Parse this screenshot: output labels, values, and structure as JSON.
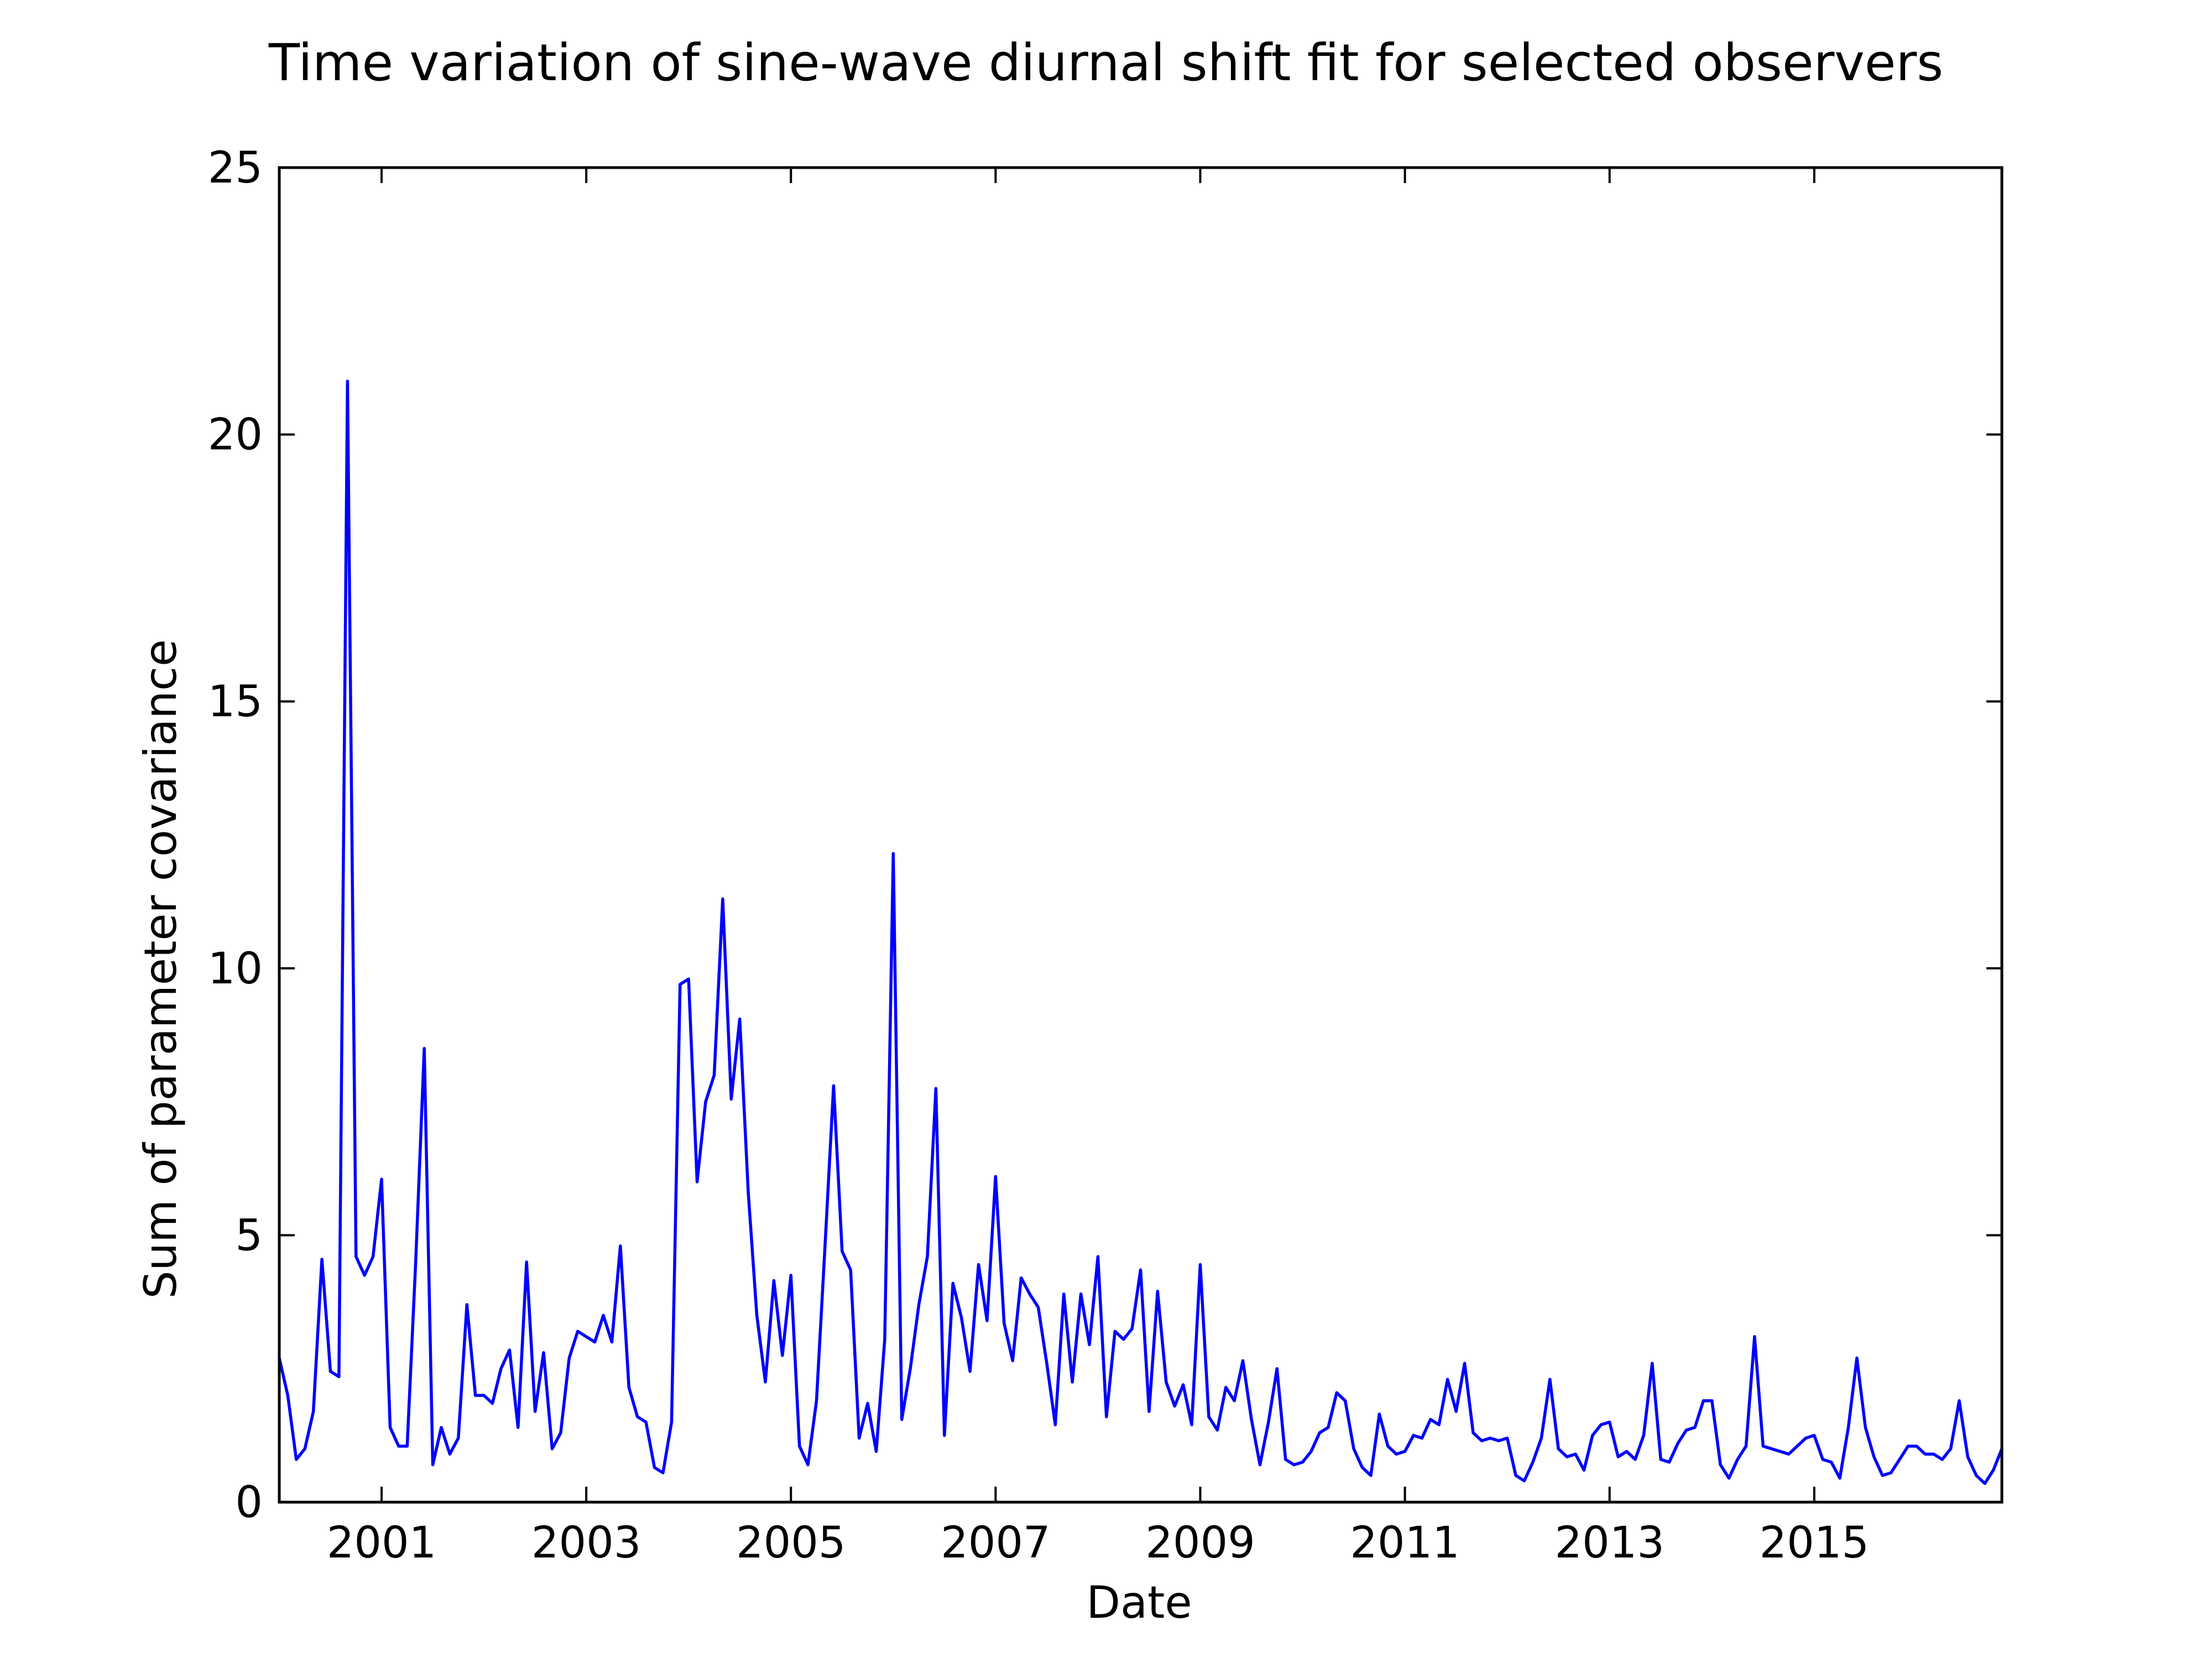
{
  "chart_data": {
    "type": "line",
    "title": "Time variation of sine-wave diurnal shift fit for selected observers",
    "xlabel": "Date",
    "ylabel": "Sum of parameter covariance",
    "xlim": [
      "2000-01",
      "2016-11"
    ],
    "ylim": [
      0,
      25
    ],
    "x_ticks": [
      "2001",
      "2003",
      "2005",
      "2007",
      "2009",
      "2011",
      "2013",
      "2015"
    ],
    "y_ticks": [
      "0",
      "5",
      "10",
      "15",
      "20",
      "25"
    ],
    "grid": false,
    "legend": "none",
    "series": [
      {
        "color": "#0000ff",
        "x": [
          "2000-01",
          "2000-02",
          "2000-03",
          "2000-04",
          "2000-05",
          "2000-06",
          "2000-07",
          "2000-08",
          "2000-09",
          "2000-10",
          "2000-11",
          "2000-12",
          "2001-01",
          "2001-02",
          "2001-03",
          "2001-04",
          "2001-05",
          "2001-06",
          "2001-07",
          "2001-08",
          "2001-09",
          "2001-10",
          "2001-11",
          "2001-12",
          "2002-01",
          "2002-02",
          "2002-03",
          "2002-04",
          "2002-05",
          "2002-06",
          "2002-07",
          "2002-08",
          "2002-09",
          "2002-10",
          "2002-11",
          "2002-12",
          "2003-01",
          "2003-02",
          "2003-03",
          "2003-04",
          "2003-05",
          "2003-06",
          "2003-07",
          "2003-08",
          "2003-09",
          "2003-10",
          "2003-11",
          "2003-12",
          "2004-01",
          "2004-02",
          "2004-03",
          "2004-04",
          "2004-05",
          "2004-06",
          "2004-07",
          "2004-08",
          "2004-09",
          "2004-10",
          "2004-11",
          "2004-12",
          "2005-01",
          "2005-02",
          "2005-03",
          "2005-04",
          "2005-05",
          "2005-06",
          "2005-07",
          "2005-08",
          "2005-09",
          "2005-10",
          "2005-11",
          "2005-12",
          "2006-01",
          "2006-02",
          "2006-03",
          "2006-04",
          "2006-05",
          "2006-06",
          "2006-07",
          "2006-08",
          "2006-09",
          "2006-10",
          "2006-11",
          "2006-12",
          "2007-01",
          "2007-02",
          "2007-03",
          "2007-04",
          "2007-05",
          "2007-06",
          "2007-07",
          "2007-08",
          "2007-09",
          "2007-10",
          "2007-11",
          "2007-12",
          "2008-01",
          "2008-02",
          "2008-03",
          "2008-04",
          "2008-05",
          "2008-06",
          "2008-07",
          "2008-08",
          "2008-09",
          "2008-10",
          "2008-11",
          "2008-12",
          "2009-01",
          "2009-02",
          "2009-03",
          "2009-04",
          "2009-05",
          "2009-06",
          "2009-07",
          "2009-08",
          "2009-09",
          "2009-10",
          "2009-11",
          "2009-12",
          "2010-01",
          "2010-02",
          "2010-03",
          "2010-04",
          "2010-05",
          "2010-06",
          "2010-07",
          "2010-08",
          "2010-09",
          "2010-10",
          "2010-11",
          "2010-12",
          "2011-01",
          "2011-02",
          "2011-03",
          "2011-04",
          "2011-05",
          "2011-06",
          "2011-07",
          "2011-08",
          "2011-09",
          "2011-10",
          "2011-11",
          "2011-12",
          "2012-01",
          "2012-02",
          "2012-03",
          "2012-04",
          "2012-05",
          "2012-06",
          "2012-07",
          "2012-08",
          "2012-09",
          "2012-10",
          "2012-11",
          "2012-12",
          "2013-01",
          "2013-02",
          "2013-03",
          "2013-04",
          "2013-05",
          "2013-06",
          "2013-07",
          "2013-08",
          "2013-09",
          "2013-10",
          "2013-11",
          "2013-12",
          "2014-01",
          "2014-02",
          "2014-03",
          "2014-04",
          "2014-05",
          "2014-06",
          "2014-07",
          "2014-08",
          "2014-09",
          "2014-10",
          "2014-11",
          "2014-12",
          "2015-01",
          "2015-02",
          "2015-03",
          "2015-04",
          "2015-05",
          "2015-06",
          "2015-07",
          "2015-08",
          "2015-09",
          "2015-10",
          "2015-11",
          "2015-12",
          "2016-01",
          "2016-02",
          "2016-03",
          "2016-04",
          "2016-05",
          "2016-06",
          "2016-07",
          "2016-08",
          "2016-09",
          "2016-10",
          "2016-11"
        ],
        "values": [
          2.7,
          2.0,
          0.8,
          1.0,
          1.7,
          4.55,
          2.45,
          2.35,
          21.0,
          4.6,
          4.25,
          4.6,
          6.05,
          1.4,
          1.05,
          1.05,
          4.5,
          8.5,
          0.7,
          1.4,
          0.9,
          1.2,
          3.7,
          2.0,
          2.0,
          1.85,
          2.5,
          2.85,
          1.4,
          4.5,
          1.7,
          2.8,
          1.0,
          1.3,
          2.7,
          3.2,
          3.1,
          3.0,
          3.5,
          3.0,
          4.8,
          2.15,
          1.6,
          1.5,
          0.65,
          0.55,
          1.5,
          9.7,
          9.8,
          6.0,
          7.5,
          8.0,
          11.3,
          7.55,
          9.05,
          5.8,
          3.5,
          2.25,
          4.15,
          2.75,
          4.25,
          1.05,
          0.7,
          1.9,
          4.8,
          7.8,
          4.7,
          4.35,
          1.2,
          1.85,
          0.95,
          3.05,
          12.15,
          1.55,
          2.5,
          3.7,
          4.6,
          7.75,
          1.25,
          4.1,
          3.45,
          2.45,
          4.45,
          3.4,
          6.1,
          3.35,
          2.65,
          4.2,
          3.9,
          3.65,
          2.6,
          1.45,
          3.9,
          2.25,
          3.9,
          2.95,
          4.6,
          1.6,
          3.2,
          3.05,
          3.25,
          4.35,
          1.7,
          3.95,
          2.25,
          1.8,
          2.2,
          1.45,
          4.45,
          1.6,
          1.35,
          2.15,
          1.9,
          2.65,
          1.55,
          0.7,
          1.5,
          2.5,
          0.8,
          0.7,
          0.75,
          0.95,
          1.3,
          1.4,
          2.05,
          1.9,
          1.0,
          0.65,
          0.5,
          1.65,
          1.05,
          0.9,
          0.95,
          1.25,
          1.2,
          1.55,
          1.45,
          2.3,
          1.7,
          2.6,
          1.3,
          1.15,
          1.2,
          1.15,
          1.2,
          0.5,
          0.4,
          0.75,
          1.2,
          2.3,
          1.0,
          0.85,
          0.9,
          0.6,
          1.25,
          1.45,
          1.5,
          0.85,
          0.95,
          0.8,
          1.25,
          2.6,
          0.8,
          0.75,
          1.1,
          1.35,
          1.4,
          1.9,
          1.9,
          0.7,
          0.45,
          0.8,
          1.05,
          3.1,
          1.05,
          1.0,
          0.95,
          0.9,
          1.05,
          1.2,
          1.25,
          0.8,
          0.75,
          0.45,
          1.4,
          2.7,
          1.4,
          0.85,
          0.5,
          0.55,
          0.8,
          1.05,
          1.05,
          0.9,
          0.9,
          0.8,
          1.0,
          1.9,
          0.85,
          0.5,
          0.35,
          0.6,
          1.0
        ]
      }
    ]
  }
}
